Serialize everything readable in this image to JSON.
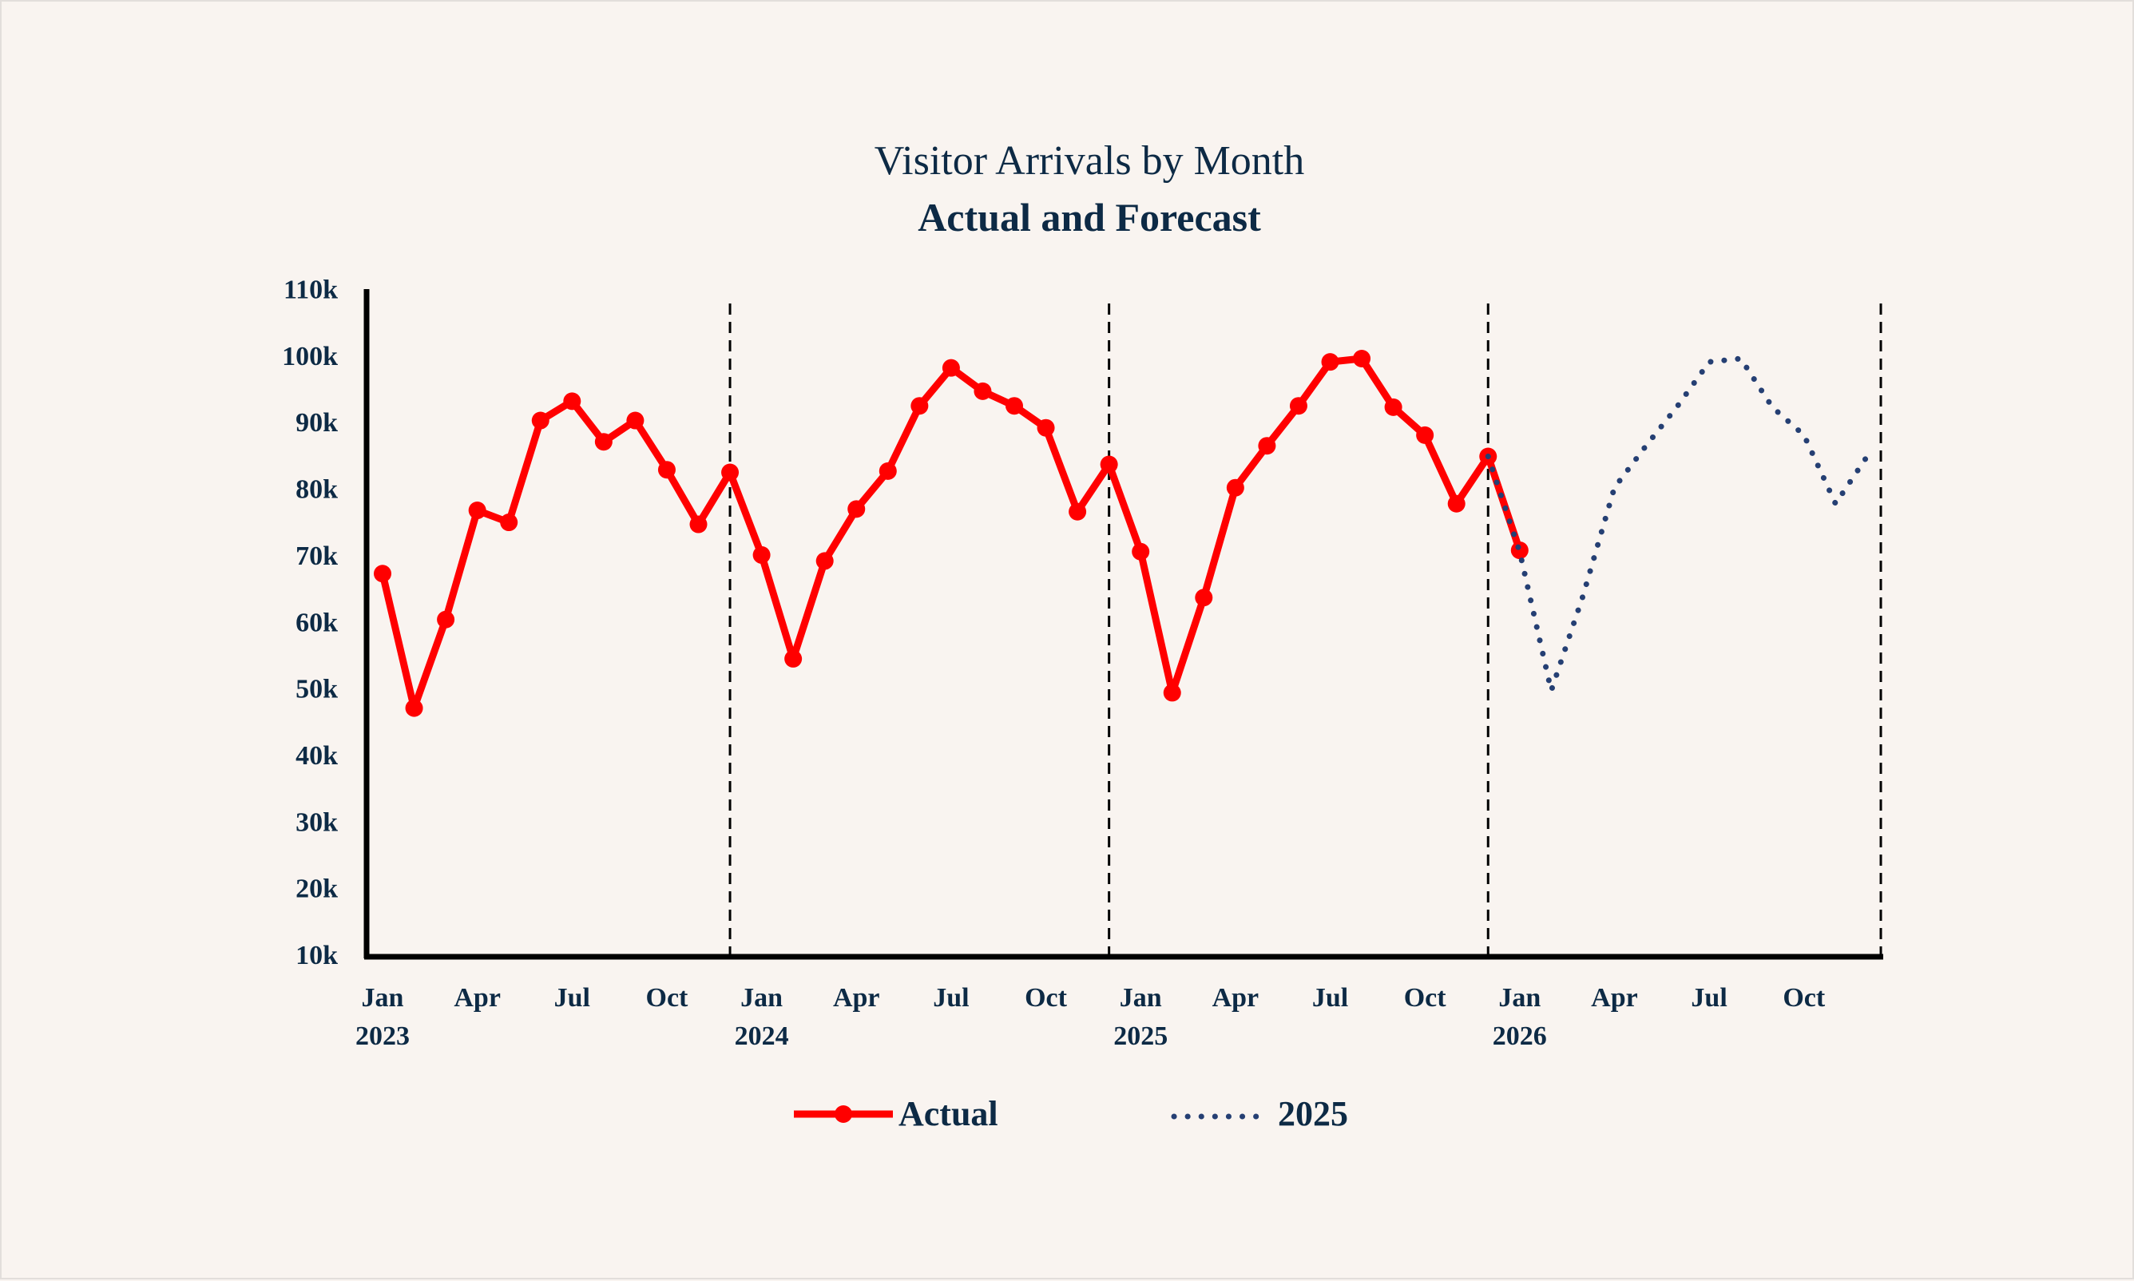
{
  "chart_data": {
    "type": "line",
    "title": "Visitor Arrivals by Month",
    "subtitle": "Actual and Forecast",
    "xlabel": "",
    "ylabel": "",
    "ylim": [
      10000,
      110000
    ],
    "y_ticks": [
      "10k",
      "20k",
      "30k",
      "40k",
      "50k",
      "60k",
      "70k",
      "80k",
      "90k",
      "100k",
      "110k"
    ],
    "x_ticks": [
      {
        "month": "Jan",
        "year": "2023",
        "date": "2023-01"
      },
      {
        "month": "Apr",
        "date": "2023-04"
      },
      {
        "month": "Jul",
        "date": "2023-07"
      },
      {
        "month": "Oct",
        "date": "2023-10"
      },
      {
        "month": "Jan",
        "year": "2024",
        "date": "2024-01"
      },
      {
        "month": "Apr",
        "date": "2024-04"
      },
      {
        "month": "Jul",
        "date": "2024-07"
      },
      {
        "month": "Oct",
        "date": "2024-10"
      },
      {
        "month": "Jan",
        "year": "2025",
        "date": "2025-01"
      },
      {
        "month": "Apr",
        "date": "2025-04"
      },
      {
        "month": "Jul",
        "date": "2025-07"
      },
      {
        "month": "Oct",
        "date": "2025-10"
      },
      {
        "month": "Jan",
        "year": "2026",
        "date": "2026-01"
      },
      {
        "month": "Apr",
        "date": "2026-04"
      },
      {
        "month": "Jul",
        "date": "2026-07"
      },
      {
        "month": "Oct",
        "date": "2026-10"
      }
    ],
    "vertical_reference_lines": [
      "2023-12",
      "2024-12",
      "2025-12",
      "2026-12"
    ],
    "grid": false,
    "legend_position": "bottom",
    "series": [
      {
        "name": "Actual",
        "style": "solid line with markers",
        "color": "#ff0000",
        "start": "2023-01",
        "values": [
          67200,
          47000,
          60300,
          76700,
          74900,
          90200,
          93100,
          87000,
          90200,
          82800,
          74600,
          82400,
          70000,
          54400,
          69100,
          76900,
          82600,
          92400,
          98100,
          94600,
          92400,
          89100,
          76500,
          83600,
          70500,
          49300,
          63600,
          80100,
          86400,
          92400,
          99000,
          99500,
          92200,
          88000,
          77700,
          84800,
          70700
        ]
      },
      {
        "name": "2025",
        "style": "dotted line",
        "color": "#253f73",
        "start": "2025-12",
        "values": [
          84800,
          70500,
          49600,
          63800,
          80100,
          86400,
          92400,
          99000,
          99500,
          92200,
          88000,
          77700,
          84800
        ]
      }
    ]
  }
}
